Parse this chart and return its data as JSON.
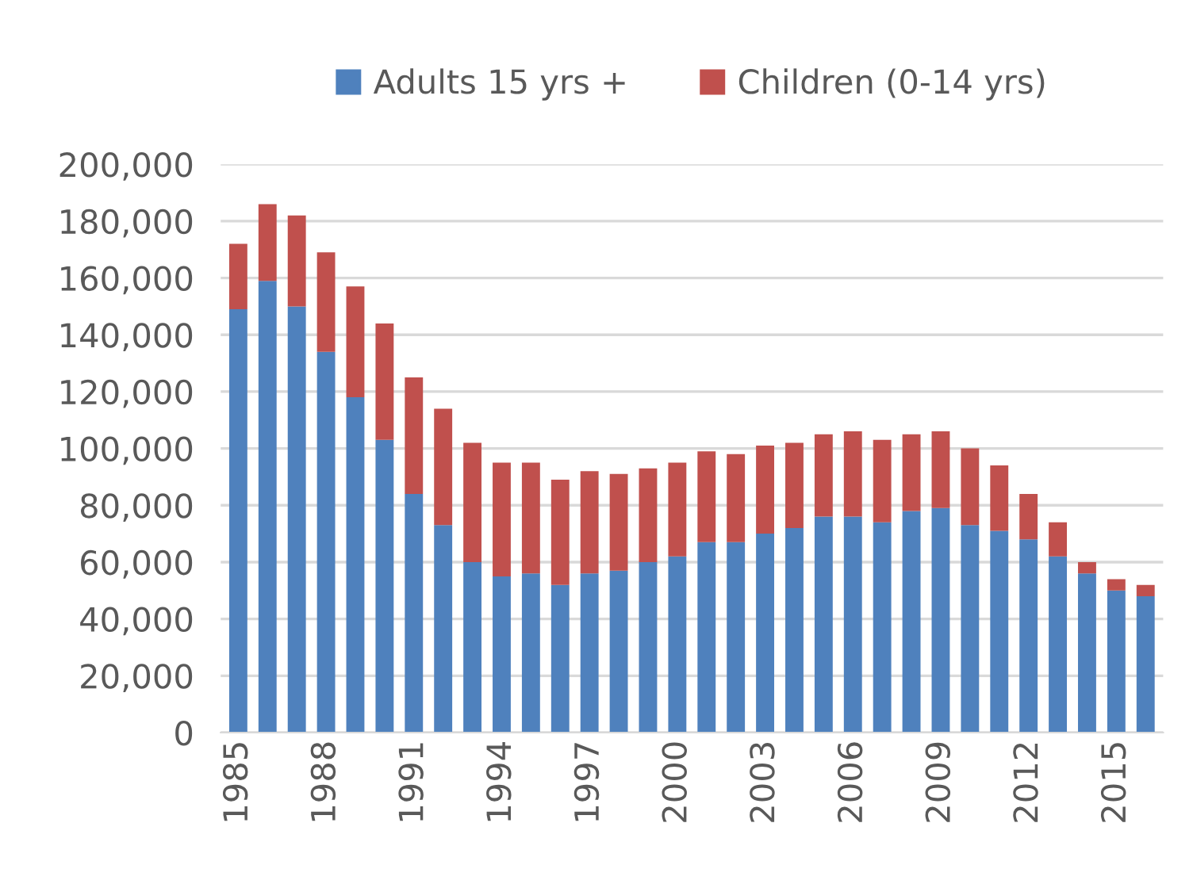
{
  "chart_data": {
    "type": "bar",
    "stacked": true,
    "categories": [
      "1985",
      null,
      null,
      "1988",
      null,
      null,
      "1991",
      null,
      null,
      "1994",
      null,
      null,
      "1997",
      null,
      null,
      "2000",
      null,
      null,
      "2003",
      null,
      null,
      "2006",
      null,
      null,
      "2009",
      null,
      null,
      "2012",
      null,
      null,
      "2015",
      null
    ],
    "series": [
      {
        "name": "Adults 15 yrs +",
        "color": "#4f81bd",
        "values": [
          149000,
          159000,
          150000,
          134000,
          118000,
          103000,
          84000,
          73000,
          60000,
          55000,
          56000,
          52000,
          56000,
          57000,
          60000,
          62000,
          67000,
          67000,
          70000,
          72000,
          76000,
          76000,
          74000,
          78000,
          79000,
          73000,
          71000,
          68000,
          62000,
          56000,
          50000,
          48000
        ]
      },
      {
        "name": "Children (0-14 yrs)",
        "color": "#c0504d",
        "values": [
          23000,
          27000,
          32000,
          35000,
          39000,
          41000,
          41000,
          41000,
          42000,
          40000,
          39000,
          37000,
          36000,
          34000,
          33000,
          33000,
          32000,
          31000,
          31000,
          30000,
          29000,
          30000,
          29000,
          27000,
          27000,
          27000,
          23000,
          16000,
          12000,
          4000,
          4000,
          4000
        ]
      }
    ],
    "ylim": [
      0,
      200000
    ],
    "yticks": [
      {
        "value": 0,
        "label": "0"
      },
      {
        "value": 20000,
        "label": "20,000"
      },
      {
        "value": 40000,
        "label": "40,000"
      },
      {
        "value": 60000,
        "label": "60,000"
      },
      {
        "value": 80000,
        "label": "80,000"
      },
      {
        "value": 100000,
        "label": "100,000"
      },
      {
        "value": 120000,
        "label": "120,000"
      },
      {
        "value": 140000,
        "label": "140,000"
      },
      {
        "value": 160000,
        "label": "160,000"
      },
      {
        "value": 180000,
        "label": "180,000"
      },
      {
        "value": 200000,
        "label": "200,000"
      }
    ],
    "grid": "y",
    "legend": "top"
  }
}
